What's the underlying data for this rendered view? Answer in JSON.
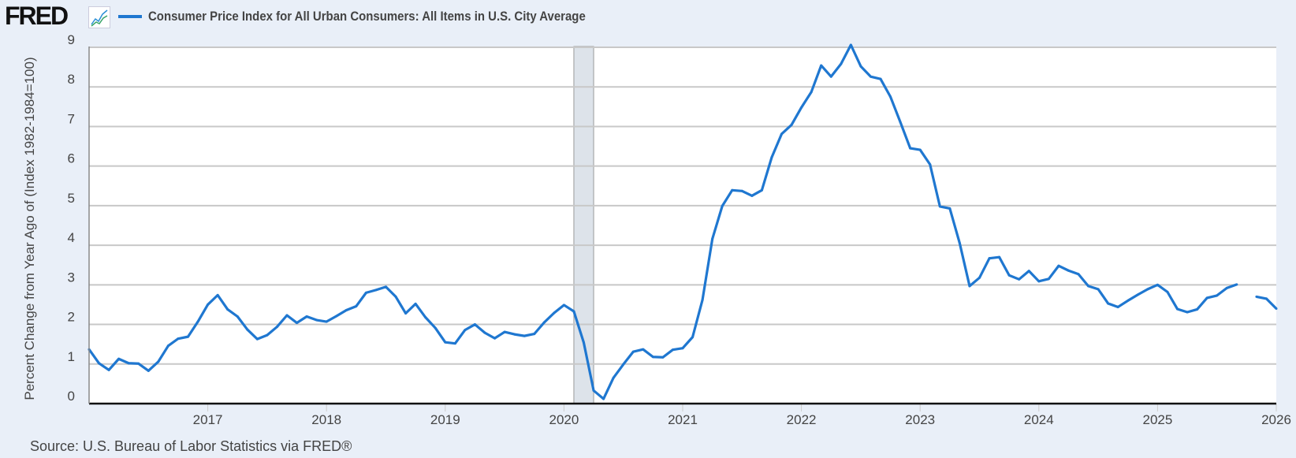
{
  "header": {
    "logo_text": "FRED",
    "logo_icon": "line-chart-icon",
    "legend_label": "Consumer Price Index for All Urban Consumers: All Items in U.S. City Average",
    "legend_color": "#1f77d0"
  },
  "footer": {
    "source": "Source: U.S. Bureau of Labor Statistics via FRED®"
  },
  "chart_data": {
    "type": "line",
    "title": "",
    "ylabel": "Percent Change from Year Ago of (Index 1982-1984=100)",
    "xlabel": "",
    "ylim": [
      0,
      9
    ],
    "xlim": [
      "2016-01",
      "2026-01"
    ],
    "yticks": [
      "0",
      "1",
      "2",
      "3",
      "4",
      "5",
      "6",
      "7",
      "8",
      "9"
    ],
    "xticks": [
      "2017",
      "2018",
      "2019",
      "2020",
      "2021",
      "2022",
      "2023",
      "2024",
      "2025",
      "2026"
    ],
    "grid": true,
    "recession_shading": {
      "start": "2020-02",
      "end": "2020-04",
      "color": "#dde3ea"
    },
    "series": [
      {
        "name": "Consumer Price Index for All Urban Consumers: All Items in U.S. City Average",
        "color": "#1f77d0",
        "start": "2016-01",
        "frequency": "monthly",
        "values": [
          1.37,
          1.02,
          0.85,
          1.13,
          1.02,
          1.01,
          0.83,
          1.06,
          1.46,
          1.64,
          1.69,
          2.07,
          2.5,
          2.74,
          2.38,
          2.2,
          1.87,
          1.63,
          1.73,
          1.94,
          2.23,
          2.04,
          2.2,
          2.11,
          2.07,
          2.21,
          2.36,
          2.46,
          2.8,
          2.87,
          2.95,
          2.7,
          2.28,
          2.52,
          2.18,
          1.91,
          1.55,
          1.52,
          1.86,
          2.0,
          1.79,
          1.65,
          1.81,
          1.75,
          1.71,
          1.76,
          2.05,
          2.29,
          2.49,
          2.33,
          1.54,
          0.33,
          0.12,
          0.65,
          0.99,
          1.31,
          1.37,
          1.18,
          1.17,
          1.36,
          1.4,
          1.68,
          2.62,
          4.16,
          4.99,
          5.39,
          5.37,
          5.25,
          5.39,
          6.22,
          6.81,
          7.04,
          7.48,
          7.87,
          8.54,
          8.26,
          8.58,
          9.06,
          8.52,
          8.26,
          8.2,
          7.75,
          7.11,
          6.45,
          6.41,
          6.04,
          4.98,
          4.93,
          4.05,
          2.97,
          3.18,
          3.67,
          3.7,
          3.24,
          3.14,
          3.35,
          3.09,
          3.15,
          3.48,
          3.36,
          3.27,
          2.97,
          2.89,
          2.53,
          2.44,
          2.6,
          2.75,
          2.89,
          3.0,
          2.82,
          2.39,
          2.31,
          2.38,
          2.67,
          2.73,
          2.92,
          3.01,
          null,
          2.7,
          2.65,
          2.4
        ]
      }
    ]
  }
}
